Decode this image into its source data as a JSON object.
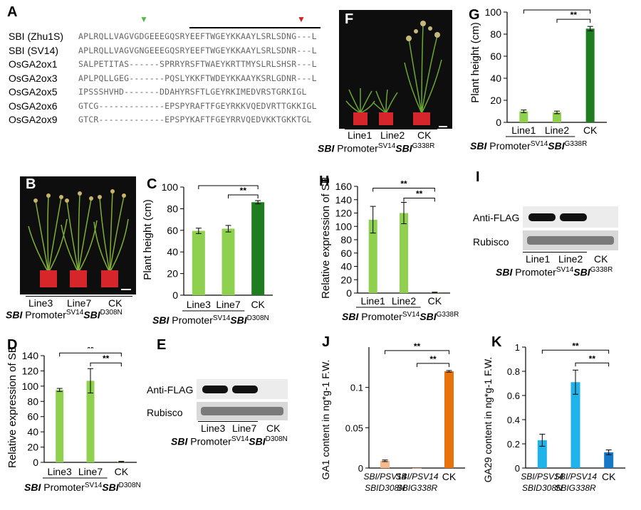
{
  "panelA": {
    "letter": "A",
    "names": [
      "SBI (Zhu1S)",
      "SBI (SV14)",
      "OsGA2ox1",
      "OsGA2ox3",
      "OsGA2ox5",
      "OsGA2ox6",
      "OsGA2ox9"
    ],
    "seqs": [
      "APLRQLLVAGVGDGEEEGQSRYEEFTWGEYKKAAYLSRLSDNG---L",
      "APLRQLLVAGVGNGEEEGQSRYEEFTWGEYKKAAYLSRLSDNR---L",
      "SALPETITAS------SPRRYRSFTWAEYKRTTMYSLRLSHSR---L",
      "APLPQLLGEG-------PQSLYKKFTWDEYKKAAYKSRLGDNR---L",
      "IPSSSHVHD-------DDAHYRSFTLGEYRKIMEDVRSTGRKIGL",
      "GTCG-------------EPSPYRAFTFGEYRKKVQEDVRTTGKKIGL",
      "GTCR-------------EPSPYKAFTFGEYRRVQEDVKKTGKKTGL"
    ],
    "green_marker": "▼",
    "red_marker": "▼"
  },
  "panelB": {
    "letter": "B",
    "lanes": [
      "Line3",
      "Line7",
      "CK"
    ],
    "genotype": {
      "gene": "SBI",
      "promoter": "Promoter",
      "sup": "SV14",
      "gene2": "SBI",
      "allele": "D308N"
    }
  },
  "panelC": {
    "letter": "C"
  },
  "panelD": {
    "letter": "D"
  },
  "panelE": {
    "letter": "E",
    "anti": "Anti-FLAG",
    "loading": "Rubisco",
    "lanes": [
      "Line3",
      "Line7",
      "CK"
    ],
    "genotype": {
      "gene": "SBI",
      "promoter": "Promoter",
      "sup": "SV14",
      "gene2": "SBI",
      "allele": "D308N"
    }
  },
  "panelF": {
    "letter": "F",
    "lanes": [
      "Line1",
      "Line2",
      "CK"
    ],
    "genotype": {
      "gene": "SBI",
      "promoter": "Promoter",
      "sup": "SV14",
      "gene2": "SBI",
      "allele": "G338R"
    }
  },
  "panelG": {
    "letter": "G"
  },
  "panelH": {
    "letter": "H"
  },
  "panelI": {
    "letter": "I",
    "anti": "Anti-FLAG",
    "loading": "Rubisco",
    "lanes": [
      "Line1",
      "Line2",
      "CK"
    ],
    "genotype": {
      "gene": "SBI",
      "promoter": "Promoter",
      "sup": "SV14",
      "gene2": "SBI",
      "allele": "G338R"
    }
  },
  "panelJ": {
    "letter": "J"
  },
  "panelK": {
    "letter": "K"
  },
  "chart_data": [
    {
      "id": "C",
      "type": "bar",
      "ylabel": "Plant height (cm)",
      "categories": [
        "Line3",
        "Line7",
        "CK"
      ],
      "values": [
        59.5,
        61.5,
        86
      ],
      "errors": [
        2.5,
        3,
        1.5
      ],
      "ylim": [
        0,
        100
      ],
      "yticks": [
        0,
        20,
        40,
        60,
        80,
        100
      ],
      "colors": [
        "#8fd14f",
        "#8fd14f",
        "#1e7d1e"
      ],
      "sig": [
        "**",
        "**"
      ],
      "xlabel": {
        "gene": "SBI",
        "promoter": "Promoter",
        "sup": "SV14",
        "gene2": "SBI",
        "allele": "D308N"
      }
    },
    {
      "id": "D",
      "type": "bar",
      "ylabel": "Relative expression of SBI",
      "categories": [
        "Line3",
        "Line7",
        "CK"
      ],
      "values": [
        95,
        107,
        1
      ],
      "errors": [
        2,
        16,
        0.3
      ],
      "ylim": [
        0,
        140
      ],
      "yticks": [
        0,
        20,
        40,
        60,
        80,
        100,
        120,
        140
      ],
      "colors": [
        "#8fd14f",
        "#8fd14f",
        "#8fd14f"
      ],
      "sig": [
        "**",
        "**"
      ],
      "xlabel": {
        "gene": "SBI",
        "promoter": "Promoter",
        "sup": "SV14",
        "gene2": "SBI",
        "allele": "D308N"
      }
    },
    {
      "id": "G",
      "type": "bar",
      "ylabel": "Plant height (cm)",
      "categories": [
        "Line1",
        "Line2",
        "CK"
      ],
      "values": [
        10,
        9,
        85
      ],
      "errors": [
        1.2,
        1.2,
        2
      ],
      "ylim": [
        0,
        100
      ],
      "yticks": [
        0,
        20,
        40,
        60,
        80,
        100
      ],
      "colors": [
        "#8fd14f",
        "#8fd14f",
        "#1e7d1e"
      ],
      "sig": [
        "**",
        "**"
      ],
      "xlabel": {
        "gene": "SBI",
        "promoter": "Promoter",
        "sup": "SV14",
        "gene2": "SBI",
        "allele": "G338R"
      }
    },
    {
      "id": "H",
      "type": "bar",
      "ylabel": "Relative expression of SBI",
      "categories": [
        "Line1",
        "Line2",
        "CK"
      ],
      "values": [
        110,
        120,
        1
      ],
      "errors": [
        20,
        16,
        0.3
      ],
      "ylim": [
        0,
        160
      ],
      "yticks": [
        0,
        20,
        40,
        60,
        80,
        100,
        120,
        140,
        160
      ],
      "colors": [
        "#8fd14f",
        "#8fd14f",
        "#8fd14f"
      ],
      "sig": [
        "**",
        "**"
      ],
      "xlabel": {
        "gene": "SBI",
        "promoter": "Promoter",
        "sup": "SV14",
        "gene2": "SBI",
        "allele": "G338R"
      }
    },
    {
      "id": "J",
      "type": "bar",
      "ylabel": "GA1 content in ng*g-1 F.W.",
      "categories": [
        "SBI/PSV14 SBID308N",
        "SBI/PSV14 SBIG338R",
        "CK"
      ],
      "values": [
        0.009,
        0.0,
        0.12
      ],
      "errors": [
        0.001,
        0,
        0.001
      ],
      "ylim": [
        0,
        0.15
      ],
      "yticks": [
        0,
        0.05,
        0.1
      ],
      "colors": [
        "#f7b98b",
        "#f0a070",
        "#e8720c"
      ],
      "sig": [
        "**",
        "**"
      ]
    },
    {
      "id": "K",
      "type": "bar",
      "ylabel": "GA29 content in ng*g-1 F.W.",
      "categories": [
        "SBI/PSV14 SBID308N",
        "SBI/PSV14 SBIG338R",
        "CK"
      ],
      "values": [
        0.23,
        0.71,
        0.13
      ],
      "errors": [
        0.05,
        0.1,
        0.02
      ],
      "ylim": [
        0,
        1
      ],
      "yticks": [
        0,
        0.2,
        0.4,
        0.6,
        0.8,
        1
      ],
      "colors": [
        "#1eb4ea",
        "#1eb4ea",
        "#1678c8"
      ],
      "sig": [
        "**",
        "**"
      ]
    }
  ]
}
